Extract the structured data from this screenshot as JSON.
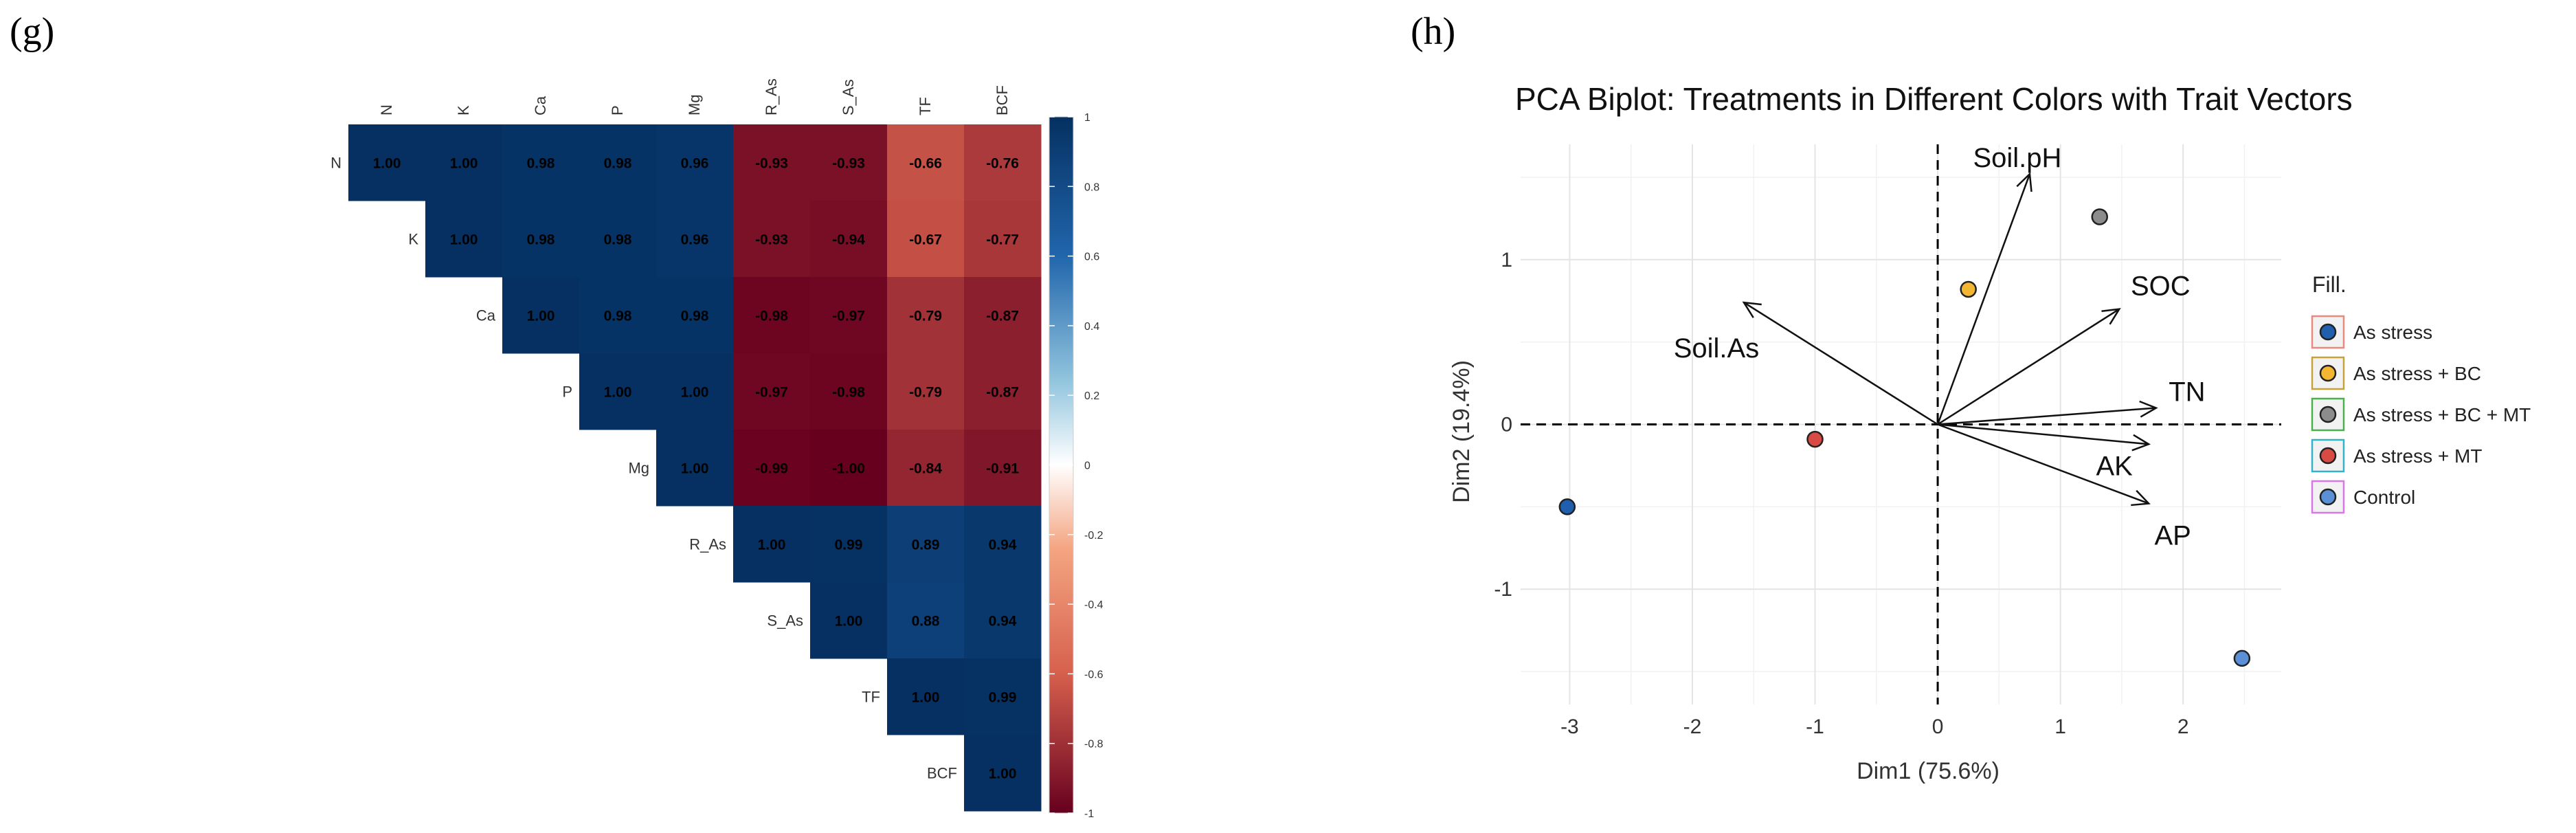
{
  "chart_data": [
    {
      "panel": "(g)",
      "type": "heatmap",
      "title": "",
      "variables": [
        "N",
        "K",
        "Ca",
        "P",
        "Mg",
        "R_As",
        "S_As",
        "TF",
        "BCF"
      ],
      "matrix": [
        [
          "1.00",
          "1.00",
          "0.98",
          "0.98",
          "0.96",
          "-0.93",
          "-0.93",
          "-0.66",
          "-0.76"
        ],
        [
          null,
          "1.00",
          "0.98",
          "0.98",
          "0.96",
          "-0.93",
          "-0.94",
          "-0.67",
          "-0.77"
        ],
        [
          null,
          null,
          "1.00",
          "0.98",
          "0.98",
          "-0.98",
          "-0.97",
          "-0.79",
          "-0.87"
        ],
        [
          null,
          null,
          null,
          "1.00",
          "1.00",
          "-0.97",
          "-0.98",
          "-0.79",
          "-0.87"
        ],
        [
          null,
          null,
          null,
          null,
          "1.00",
          "-0.99",
          "-1.00",
          "-0.84",
          "-0.91"
        ],
        [
          null,
          null,
          null,
          null,
          null,
          "1.00",
          "0.99",
          "0.89",
          "0.94"
        ],
        [
          null,
          null,
          null,
          null,
          null,
          null,
          "1.00",
          "0.88",
          "0.94"
        ],
        [
          null,
          null,
          null,
          null,
          null,
          null,
          null,
          "1.00",
          "0.99"
        ],
        [
          null,
          null,
          null,
          null,
          null,
          null,
          null,
          null,
          "1.00"
        ]
      ],
      "colorbar": {
        "range": [
          -1,
          1
        ],
        "ticks": [
          "1",
          "0.8",
          "0.6",
          "0.4",
          "0.2",
          "0",
          "-0.2",
          "-0.4",
          "-0.6",
          "-0.8",
          "-1"
        ],
        "low_color": "#67001f",
        "mid_color": "#ffffff",
        "high_color": "#053061"
      }
    },
    {
      "panel": "(h)",
      "type": "scatter",
      "title": "PCA Biplot: Treatments in Different Colors with Trait Vectors",
      "xlabel": "Dim1 (75.6%)",
      "ylabel": "Dim2 (19.4%)",
      "xlim": [
        -3.4,
        2.8
      ],
      "ylim": [
        -1.7,
        1.7
      ],
      "xticks": [
        "-3",
        "-2",
        "-1",
        "0",
        "1",
        "2"
      ],
      "yticks": [
        "-1",
        "0",
        "1"
      ],
      "points": [
        {
          "group": "As stress",
          "x": -3.02,
          "y": -0.5
        },
        {
          "group": "As stress + BC",
          "x": 0.25,
          "y": 0.82
        },
        {
          "group": "As stress + BC + MT",
          "x": 1.32,
          "y": 1.26
        },
        {
          "group": "As stress + MT",
          "x": -1.0,
          "y": -0.09
        },
        {
          "group": "Control",
          "x": 2.48,
          "y": -1.42
        }
      ],
      "vectors": [
        {
          "name": "Soil.pH",
          "x": 0.75,
          "y": 1.52
        },
        {
          "name": "SOC",
          "x": 1.48,
          "y": 0.7
        },
        {
          "name": "Soil.As",
          "x": -1.58,
          "y": 0.74
        },
        {
          "name": "TN",
          "x": 1.78,
          "y": 0.1
        },
        {
          "name": "AK",
          "x": 1.72,
          "y": -0.12
        },
        {
          "name": "AP",
          "x": 1.72,
          "y": -0.48
        }
      ],
      "legend": {
        "title": "Fill.",
        "position": "right",
        "items": [
          {
            "label": "As stress",
            "fill": "#1f5fae",
            "border": "#e88a80"
          },
          {
            "label": "As stress + BC",
            "fill": "#f2b632",
            "border": "#c7a23a"
          },
          {
            "label": "As stress + BC + MT",
            "fill": "#8c8c8c",
            "border": "#4caf50"
          },
          {
            "label": "As stress + MT",
            "fill": "#d84b45",
            "border": "#33b3c8"
          },
          {
            "label": "Control",
            "fill": "#5b8fd6",
            "border": "#d977e8"
          }
        ]
      }
    }
  ]
}
